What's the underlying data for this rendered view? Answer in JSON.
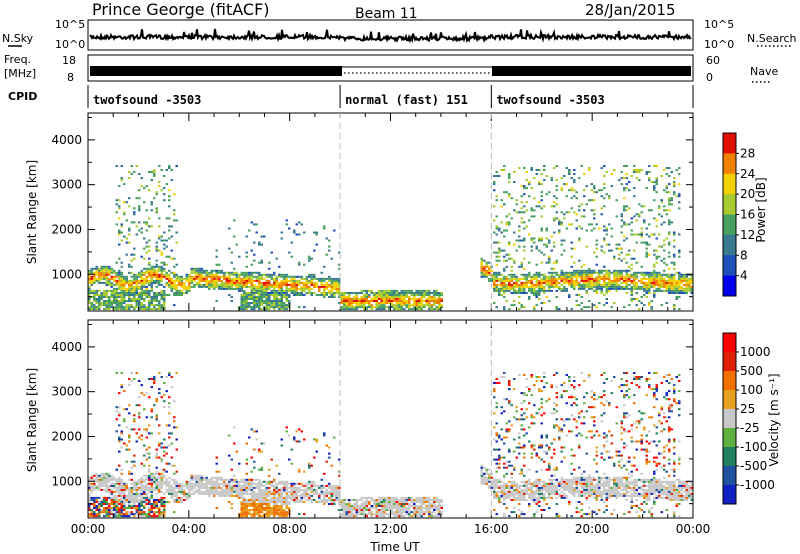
{
  "header": {
    "station": "Prince George (fitACF)",
    "beam": "Beam 11",
    "date": "28/Jan/2015"
  },
  "ui": {
    "left_labels": {
      "nsky": "N.Sky",
      "freq": "Freq.",
      "mhz": "[MHz]",
      "cpid": "CPID"
    },
    "right_labels": {
      "nsearch": "N.Search",
      "nave": "Nave"
    },
    "nsky_ticks": [
      "10^5",
      "10^0"
    ],
    "nsearch_ticks": [
      "10^5",
      "10^0"
    ],
    "freq_ticks": [
      "18",
      "8"
    ],
    "nave_ticks": [
      "60",
      "0"
    ]
  },
  "cpid_segments": [
    {
      "label": "twofsound -3503",
      "start_h": 0,
      "end_h": 10
    },
    {
      "label": "normal (fast) 151",
      "start_h": 10,
      "end_h": 16
    },
    {
      "label": "twofsound -3503",
      "start_h": 16,
      "end_h": 24
    }
  ],
  "chart_data": [
    {
      "type": "heatmap",
      "name": "power",
      "ylabel": "Slant Range [km]",
      "yticks": [
        1000,
        2000,
        3000,
        4000
      ],
      "ylim": [
        180,
        4600
      ],
      "xlim": [
        0,
        24
      ],
      "colorbar": {
        "label": "Power [dB]",
        "ticks": [
          4,
          8,
          12,
          16,
          20,
          24,
          28
        ],
        "colors": [
          "#0000ee",
          "#1f4fb8",
          "#3a7a90",
          "#4aa060",
          "#a8cc30",
          "#f5d000",
          "#f08000",
          "#e01000"
        ]
      }
    },
    {
      "type": "heatmap",
      "name": "velocity",
      "ylabel": "Slant Range [km]",
      "yticks": [
        1000,
        2000,
        3000,
        4000
      ],
      "ylim": [
        180,
        4600
      ],
      "xlim": [
        0,
        24
      ],
      "xlabel": "Time UT",
      "xtick_labels": [
        "00:00",
        "04:00",
        "08:00",
        "12:00",
        "16:00",
        "20:00",
        "00:00"
      ],
      "colorbar": {
        "label": "Velocity [m s⁻¹]",
        "ticks": [
          "1000",
          "500",
          "100",
          "25",
          "-25",
          "-100",
          "-500",
          "-1000"
        ],
        "colors": [
          "#1020c0",
          "#2050a0",
          "#208060",
          "#60b040",
          "#c8c8c8",
          "#e8a020",
          "#f07000",
          "#e02000",
          "#ff0000"
        ]
      }
    }
  ]
}
